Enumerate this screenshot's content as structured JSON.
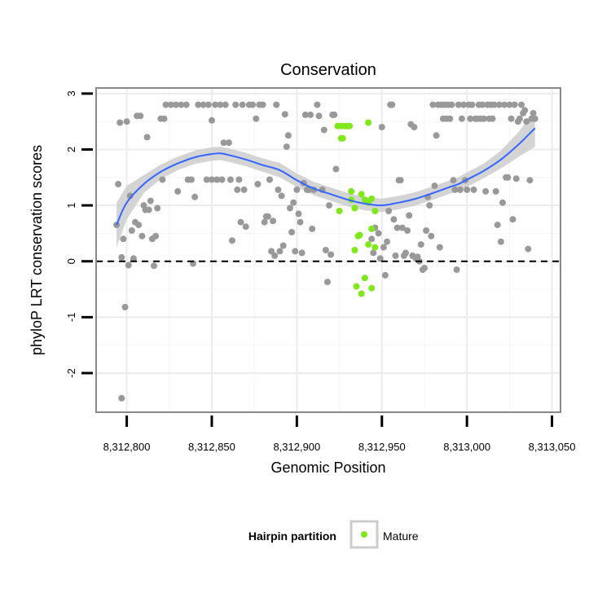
{
  "chart_data": {
    "type": "scatter",
    "title": "Conservation",
    "xlabel": "Genomic Position",
    "ylabel": "phyloP LRT conservation scores",
    "xlim": [
      8312782,
      8313055
    ],
    "ylim": [
      -2.7,
      3.1
    ],
    "x_ticks": [
      {
        "value": 8312800,
        "label": "8,312,800"
      },
      {
        "value": 8312850,
        "label": "8,312,850"
      },
      {
        "value": 8312900,
        "label": "8,312,900"
      },
      {
        "value": 8312950,
        "label": "8,312,950"
      },
      {
        "value": 8313000,
        "label": "8,313,000"
      },
      {
        "value": 8313050,
        "label": "8,313,050"
      }
    ],
    "y_ticks": [
      {
        "value": -2,
        "label": "-2"
      },
      {
        "value": -1,
        "label": "-1"
      },
      {
        "value": 0,
        "label": "0"
      },
      {
        "value": 1,
        "label": "1"
      },
      {
        "value": 2,
        "label": "2"
      },
      {
        "value": 3,
        "label": "3"
      }
    ],
    "grid": true,
    "reference_line": {
      "y": 0,
      "style": "dashed"
    },
    "colors": {
      "other": "#999999",
      "mature": "#7FE81B",
      "trend": "#3366FF",
      "ribbon": "#CCCCCC",
      "panel_border": "#888888"
    },
    "legend": {
      "title": "Hairpin partition",
      "position": "bottom",
      "entries": [
        {
          "name": "Mature",
          "color": "#7FE81B"
        }
      ]
    },
    "series": [
      {
        "name": "Other",
        "points": [
          [
            8312794,
            0.65
          ],
          [
            8312795,
            1.38
          ],
          [
            8312796,
            2.48
          ],
          [
            8312797,
            0.07
          ],
          [
            8312798,
            0.4
          ],
          [
            8312799,
            -0.82
          ],
          [
            8312800,
            2.5
          ],
          [
            8312801,
            -0.07
          ],
          [
            8312802,
            1.17
          ],
          [
            8312803,
            0.55
          ],
          [
            8312804,
            0.05
          ],
          [
            8312797,
            -2.45
          ],
          [
            8312805,
            0.7
          ],
          [
            8312806,
            2.6
          ],
          [
            8312807,
            0.65
          ],
          [
            8312808,
            2.6
          ],
          [
            8312809,
            0.45
          ],
          [
            8312810,
            1.0
          ],
          [
            8312811,
            0.92
          ],
          [
            8312812,
            2.22
          ],
          [
            8312813,
            0.92
          ],
          [
            8312814,
            1.08
          ],
          [
            8312815,
            0.4
          ],
          [
            8312816,
            -0.08
          ],
          [
            8312817,
            0.45
          ],
          [
            8312818,
            0.95
          ],
          [
            8312820,
            2.55
          ],
          [
            8312821,
            1.46
          ],
          [
            8312822,
            2.55
          ],
          [
            8312823,
            2.8
          ],
          [
            8312826,
            2.8
          ],
          [
            8312829,
            2.8
          ],
          [
            8312830,
            1.25
          ],
          [
            8312832,
            2.8
          ],
          [
            8312835,
            2.8
          ],
          [
            8312836,
            1.46
          ],
          [
            8312838,
            1.46
          ],
          [
            8312839,
            -0.04
          ],
          [
            8312840,
            1.15
          ],
          [
            8312842,
            2.8
          ],
          [
            8312845,
            2.8
          ],
          [
            8312847,
            1.46
          ],
          [
            8312848,
            2.8
          ],
          [
            8312850,
            2.52
          ],
          [
            8312850,
            1.46
          ],
          [
            8312852,
            2.8
          ],
          [
            8312853,
            1.46
          ],
          [
            8312855,
            2.8
          ],
          [
            8312856,
            1.46
          ],
          [
            8312857,
            2.12
          ],
          [
            8312858,
            2.8
          ],
          [
            8312860,
            2.12
          ],
          [
            8312861,
            1.46
          ],
          [
            8312862,
            0.37
          ],
          [
            8312864,
            2.8
          ],
          [
            8312865,
            1.28
          ],
          [
            8312866,
            1.46
          ],
          [
            8312867,
            0.7
          ],
          [
            8312868,
            2.8
          ],
          [
            8312869,
            1.28
          ],
          [
            8312870,
            0.62
          ],
          [
            8312872,
            2.8
          ],
          [
            8312874,
            2.8
          ],
          [
            8312876,
            2.55
          ],
          [
            8312877,
            1.38
          ],
          [
            8312878,
            2.8
          ],
          [
            8312880,
            2.8
          ],
          [
            8312881,
            0.7
          ],
          [
            8312882,
            0.8
          ],
          [
            8312883,
            0.8
          ],
          [
            8312884,
            1.46
          ],
          [
            8312885,
            0.18
          ],
          [
            8312886,
            0.72
          ],
          [
            8312887,
            0.1
          ],
          [
            8312888,
            2.8
          ],
          [
            8312889,
            1.28
          ],
          [
            8312890,
            0.18
          ],
          [
            8312891,
            1.17
          ],
          [
            8312892,
            0.28
          ],
          [
            8312893,
            2.63
          ],
          [
            8312894,
            2.05
          ],
          [
            8312895,
            2.25
          ],
          [
            8312896,
            0.95
          ],
          [
            8312897,
            0.52
          ],
          [
            8312898,
            1.05
          ],
          [
            8312899,
            0.18
          ],
          [
            8312900,
            1.28
          ],
          [
            8312901,
            0.85
          ],
          [
            8312902,
            0.7
          ],
          [
            8312903,
            0.15
          ],
          [
            8312904,
            1.4
          ],
          [
            8312905,
            2.62
          ],
          [
            8312906,
            1.28
          ],
          [
            8312907,
            1.28
          ],
          [
            8312908,
            2.62
          ],
          [
            8312909,
            0.58
          ],
          [
            8312910,
            1.28
          ],
          [
            8312912,
            2.8
          ],
          [
            8312913,
            2.6
          ],
          [
            8312915,
            1.28
          ],
          [
            8312916,
            2.35
          ],
          [
            8312917,
            0.2
          ],
          [
            8312918,
            -0.37
          ],
          [
            8312919,
            1.0
          ],
          [
            8312920,
            0.12
          ],
          [
            8312921,
            2.62
          ],
          [
            8312922,
            2.62
          ],
          [
            8312923,
            1.65
          ],
          [
            8312944,
            0.4
          ],
          [
            8312945,
            0.15
          ],
          [
            8312946,
            0.6
          ],
          [
            8312948,
            0.5
          ],
          [
            8312949,
            0.05
          ],
          [
            8312950,
            2.4
          ],
          [
            8312951,
            0.25
          ],
          [
            8312952,
            -0.25
          ],
          [
            8312953,
            0.35
          ],
          [
            8312954,
            0.9
          ],
          [
            8312955,
            2.8
          ],
          [
            8312956,
            2.8
          ],
          [
            8312957,
            0.75
          ],
          [
            8312958,
            0.1
          ],
          [
            8312959,
            0.6
          ],
          [
            8312960,
            1.45
          ],
          [
            8312961,
            1.45
          ],
          [
            8312962,
            0.6
          ],
          [
            8312963,
            0.1
          ],
          [
            8312964,
            0.15
          ],
          [
            8312965,
            0.55
          ],
          [
            8312966,
            0.82
          ],
          [
            8312967,
            2.45
          ],
          [
            8312968,
            0.1
          ],
          [
            8312969,
            2.4
          ],
          [
            8312970,
            0.05
          ],
          [
            8312971,
            0.08
          ],
          [
            8312972,
            0.0
          ],
          [
            8312973,
            0.3
          ],
          [
            8312974,
            -0.15
          ],
          [
            8312975,
            -0.12
          ],
          [
            8312976,
            0.55
          ],
          [
            8312977,
            1.15
          ],
          [
            8312978,
            1.0
          ],
          [
            8312979,
            0.45
          ],
          [
            8312980,
            2.8
          ],
          [
            8312981,
            1.35
          ],
          [
            8312982,
            2.25
          ],
          [
            8312983,
            2.8
          ],
          [
            8312984,
            0.25
          ],
          [
            8312985,
            2.8
          ],
          [
            8312986,
            2.55
          ],
          [
            8312987,
            2.8
          ],
          [
            8312988,
            2.55
          ],
          [
            8312989,
            2.8
          ],
          [
            8312990,
            2.55
          ],
          [
            8312991,
            2.8
          ],
          [
            8312992,
            1.45
          ],
          [
            8312993,
            1.28
          ],
          [
            8312994,
            -0.15
          ],
          [
            8312995,
            2.8
          ],
          [
            8312996,
            1.28
          ],
          [
            8312997,
            2.55
          ],
          [
            8312998,
            2.8
          ],
          [
            8312999,
            1.45
          ],
          [
            8313000,
            1.28
          ],
          [
            8313001,
            2.8
          ],
          [
            8313002,
            2.55
          ],
          [
            8313003,
            2.8
          ],
          [
            8313004,
            1.28
          ],
          [
            8313005,
            2.55
          ],
          [
            8313006,
            2.55
          ],
          [
            8313007,
            2.8
          ],
          [
            8313008,
            2.55
          ],
          [
            8313009,
            2.8
          ],
          [
            8313010,
            2.55
          ],
          [
            8313011,
            1.25
          ],
          [
            8313012,
            2.8
          ],
          [
            8313013,
            2.55
          ],
          [
            8313014,
            2.8
          ],
          [
            8313015,
            2.55
          ],
          [
            8313016,
            2.8
          ],
          [
            8313017,
            1.25
          ],
          [
            8313018,
            0.65
          ],
          [
            8313019,
            2.8
          ],
          [
            8313020,
            0.35
          ],
          [
            8313021,
            1.05
          ],
          [
            8313022,
            2.8
          ],
          [
            8313023,
            1.5
          ],
          [
            8313024,
            1.5
          ],
          [
            8313025,
            2.8
          ],
          [
            8313026,
            2.55
          ],
          [
            8313027,
            0.75
          ],
          [
            8313028,
            2.8
          ],
          [
            8313029,
            1.48
          ],
          [
            8313030,
            2.5
          ],
          [
            8313031,
            2.55
          ],
          [
            8313032,
            2.8
          ],
          [
            8313033,
            2.65
          ],
          [
            8313034,
            2.7
          ],
          [
            8313035,
            2.5
          ],
          [
            8313036,
            0.22
          ],
          [
            8313037,
            1.45
          ],
          [
            8313038,
            2.55
          ],
          [
            8313039,
            2.65
          ],
          [
            8313040,
            2.55
          ]
        ]
      },
      {
        "name": "Mature",
        "points": [
          [
            8312924,
            2.42
          ],
          [
            8312926,
            2.42
          ],
          [
            8312928,
            2.42
          ],
          [
            8312929,
            2.42
          ],
          [
            8312930,
            2.42
          ],
          [
            8312931,
            2.42
          ],
          [
            8312926,
            2.2
          ],
          [
            8312927,
            2.2
          ],
          [
            8312942,
            2.48
          ],
          [
            8312925,
            0.9
          ],
          [
            8312932,
            1.25
          ],
          [
            8312932,
            1.1
          ],
          [
            8312934,
            0.95
          ],
          [
            8312938,
            1.2
          ],
          [
            8312940,
            1.1
          ],
          [
            8312942,
            1.05
          ],
          [
            8312944,
            1.12
          ],
          [
            8312946,
            0.9
          ],
          [
            8312936,
            0.45
          ],
          [
            8312937,
            0.47
          ],
          [
            8312942,
            0.3
          ],
          [
            8312944,
            0.58
          ],
          [
            8312946,
            0.25
          ],
          [
            8312934,
            0.2
          ],
          [
            8312935,
            -0.45
          ],
          [
            8312940,
            -0.3
          ],
          [
            8312938,
            -0.58
          ],
          [
            8312944,
            -0.48
          ]
        ]
      }
    ],
    "trend": {
      "method": "smooth",
      "x": [
        8312794,
        8312800,
        8312810,
        8312820,
        8312830,
        8312840,
        8312850,
        8312855,
        8312860,
        8312870,
        8312880,
        8312890,
        8312900,
        8312910,
        8312920,
        8312930,
        8312940,
        8312950,
        8312960,
        8312970,
        8312980,
        8312990,
        8312995,
        8313000,
        8313010,
        8313020,
        8313030,
        8313040
      ],
      "y": [
        0.65,
        1.05,
        1.38,
        1.6,
        1.75,
        1.86,
        1.92,
        1.93,
        1.9,
        1.82,
        1.72,
        1.63,
        1.45,
        1.3,
        1.2,
        1.1,
        1.03,
        1.0,
        1.05,
        1.12,
        1.22,
        1.33,
        1.38,
        1.46,
        1.62,
        1.82,
        2.08,
        2.38
      ],
      "lower": [
        0.25,
        0.75,
        1.22,
        1.47,
        1.63,
        1.74,
        1.8,
        1.81,
        1.78,
        1.7,
        1.6,
        1.5,
        1.33,
        1.18,
        1.08,
        0.98,
        0.91,
        0.88,
        0.93,
        1.0,
        1.1,
        1.21,
        1.26,
        1.33,
        1.49,
        1.66,
        1.86,
        2.05
      ],
      "upper": [
        1.05,
        1.35,
        1.54,
        1.73,
        1.87,
        1.98,
        2.04,
        2.05,
        2.02,
        1.94,
        1.84,
        1.76,
        1.57,
        1.42,
        1.32,
        1.22,
        1.15,
        1.12,
        1.17,
        1.24,
        1.34,
        1.45,
        1.5,
        1.59,
        1.75,
        1.98,
        2.3,
        2.7
      ]
    }
  }
}
